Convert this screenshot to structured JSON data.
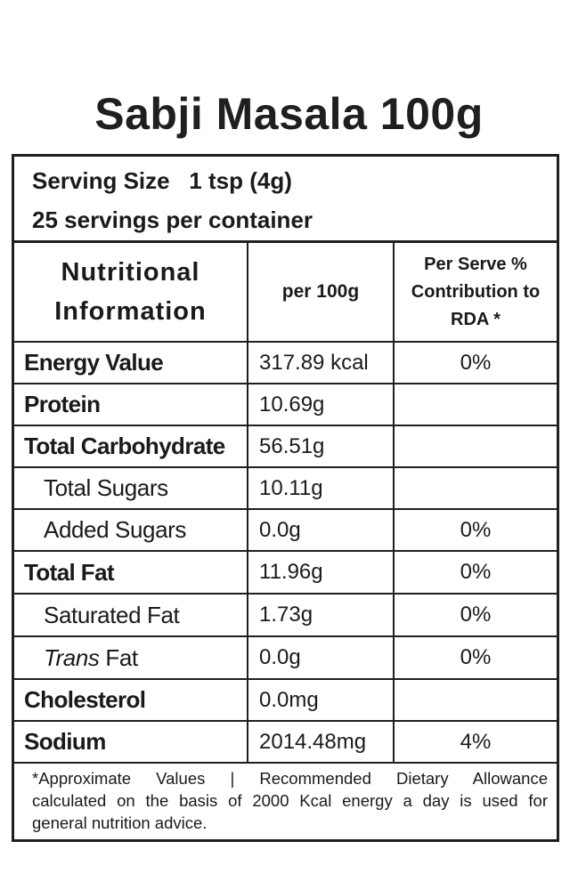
{
  "title": "Sabji Masala 100g",
  "serving": {
    "size_line": "Serving Size   1 tsp (4g)",
    "per_container_line": "25 servings per container"
  },
  "header": {
    "nutritional_line1": "Nutritional",
    "nutritional_line2": "Information",
    "per_100g": "per 100g",
    "rda_line1": "Per Serve %",
    "rda_line2": "Contribution to",
    "rda_line3": "RDA *"
  },
  "rows": [
    {
      "name": "Energy Value",
      "value": "317.89 kcal",
      "rda": "0%"
    },
    {
      "name": "Protein",
      "value": "10.69g",
      "rda": ""
    },
    {
      "name": "Total Carbohydrate",
      "value": "56.51g",
      "rda": ""
    },
    {
      "name": "Total Sugars",
      "value": "10.11g",
      "rda": ""
    },
    {
      "name": "Added Sugars",
      "value": "0.0g",
      "rda": "0%"
    },
    {
      "name": "Total Fat",
      "value": "11.96g",
      "rda": "0%"
    },
    {
      "name": "Saturated Fat",
      "value": "1.73g",
      "rda": "0%"
    },
    {
      "name_italic": "Trans",
      "name_rest": " Fat",
      "value": "0.0g",
      "rda": "0%"
    },
    {
      "name": "Cholesterol",
      "value": "0.0mg",
      "rda": ""
    },
    {
      "name": "Sodium",
      "value": "2014.48mg",
      "rda": "4%"
    }
  ],
  "footnote": {
    "line1": "*Approximate Values | Recommended Dietary Allowance",
    "line2": "calculated on the basis of 2000 Kcal energy a day is used for",
    "line3": "general nutrition advice."
  }
}
